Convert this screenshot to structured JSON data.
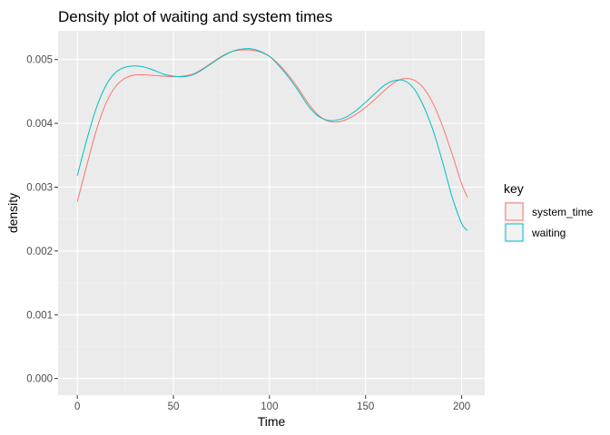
{
  "chart_data": {
    "type": "line",
    "title": "Density plot of waiting and system times",
    "xlabel": "Time",
    "ylabel": "density",
    "xlim": [
      -10,
      212
    ],
    "ylim": [
      -0.00026,
      0.00545
    ],
    "x_ticks": [
      0,
      50,
      100,
      150,
      200
    ],
    "x_tick_labels": [
      "0",
      "50",
      "100",
      "150",
      "200"
    ],
    "y_ticks": [
      0,
      0.001,
      0.002,
      0.003,
      0.004,
      0.005
    ],
    "y_tick_labels": [
      "0.000",
      "0.001",
      "0.002",
      "0.003",
      "0.004",
      "0.005"
    ],
    "grid": true,
    "legend": {
      "title": "key",
      "position": "right"
    },
    "series": [
      {
        "name": "system_time",
        "color": "#F8766D",
        "x": [
          0,
          5,
          10,
          15,
          20,
          25,
          30,
          35,
          40,
          45,
          50,
          55,
          60,
          65,
          70,
          75,
          80,
          85,
          90,
          95,
          100,
          105,
          110,
          115,
          120,
          125,
          130,
          135,
          140,
          145,
          150,
          155,
          160,
          165,
          170,
          175,
          180,
          185,
          190,
          195,
          200,
          203
        ],
        "values": [
          0.00277,
          0.00335,
          0.0039,
          0.00432,
          0.00458,
          0.00471,
          0.00476,
          0.00476,
          0.00475,
          0.00474,
          0.00473,
          0.00474,
          0.00477,
          0.00485,
          0.00495,
          0.00505,
          0.00512,
          0.00515,
          0.00515,
          0.00512,
          0.00505,
          0.00492,
          0.00475,
          0.00455,
          0.00432,
          0.00414,
          0.00404,
          0.00402,
          0.00406,
          0.00414,
          0.00425,
          0.00438,
          0.00452,
          0.00464,
          0.0047,
          0.00468,
          0.00456,
          0.00432,
          0.00396,
          0.00352,
          0.00305,
          0.00284
        ]
      },
      {
        "name": "waiting",
        "color": "#00BFC4",
        "x": [
          0,
          5,
          10,
          15,
          20,
          25,
          30,
          35,
          40,
          45,
          50,
          55,
          60,
          65,
          70,
          75,
          80,
          85,
          90,
          95,
          100,
          105,
          110,
          115,
          120,
          125,
          130,
          135,
          140,
          145,
          150,
          155,
          160,
          165,
          170,
          175,
          180,
          185,
          190,
          195,
          200,
          203
        ],
        "values": [
          0.00318,
          0.00375,
          0.00425,
          0.0046,
          0.0048,
          0.00488,
          0.0049,
          0.00488,
          0.00483,
          0.00477,
          0.00474,
          0.00473,
          0.00476,
          0.00484,
          0.00494,
          0.00504,
          0.00512,
          0.00516,
          0.00517,
          0.00513,
          0.00505,
          0.0049,
          0.00472,
          0.00451,
          0.00428,
          0.00412,
          0.00405,
          0.00405,
          0.0041,
          0.0042,
          0.00433,
          0.00447,
          0.0046,
          0.00467,
          0.00467,
          0.00455,
          0.00428,
          0.0039,
          0.0034,
          0.00285,
          0.00243,
          0.00232
        ]
      }
    ]
  }
}
